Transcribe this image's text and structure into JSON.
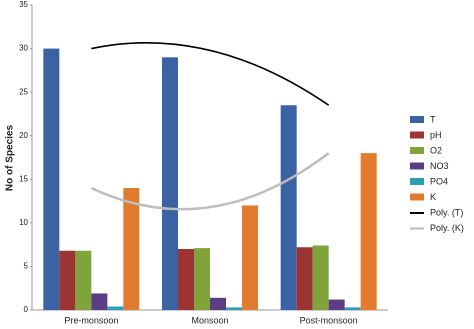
{
  "chart_data": {
    "type": "bar",
    "y_label": "No of Species",
    "categories": [
      "Pre-monsoon",
      "Monsoon",
      "Post-monsoon"
    ],
    "series": [
      {
        "name": "T",
        "color": "#3b62a3",
        "values": [
          30,
          29,
          23.5
        ]
      },
      {
        "name": "pH",
        "color": "#9c3434",
        "values": [
          6.8,
          7,
          7.2
        ]
      },
      {
        "name": "O2",
        "color": "#7fa43c",
        "values": [
          6.8,
          7.1,
          7.4
        ]
      },
      {
        "name": "NO3",
        "color": "#5b3d84",
        "values": [
          1.9,
          1.4,
          1.2
        ]
      },
      {
        "name": "PO4",
        "color": "#2f9db6",
        "values": [
          0.4,
          0.3,
          0.3
        ]
      },
      {
        "name": "K",
        "color": "#e17c2e",
        "values": [
          14,
          12,
          18
        ]
      }
    ],
    "trendlines": [
      {
        "name": "Poly. (T)",
        "color": "#000000",
        "values": [
          30,
          29.8,
          23.5
        ]
      },
      {
        "name": "Poly. (K)",
        "color": "#bdbdbd",
        "values": [
          14,
          11.8,
          18
        ]
      }
    ],
    "ylim": [
      0,
      35
    ],
    "yticks": [
      0,
      5,
      10,
      15,
      20,
      25,
      30,
      35
    ],
    "grid": false
  }
}
